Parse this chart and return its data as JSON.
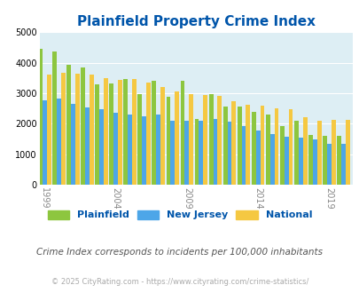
{
  "title": "Plainfield Property Crime Index",
  "years": [
    1999,
    2000,
    2001,
    2002,
    2003,
    2004,
    2005,
    2006,
    2007,
    2008,
    2009,
    2010,
    2011,
    2012,
    2013,
    2014,
    2015,
    2016,
    2017,
    2018,
    2019,
    2020
  ],
  "plainfield": [
    4450,
    4380,
    3920,
    3850,
    3300,
    3310,
    3460,
    2960,
    3400,
    2870,
    3420,
    2160,
    2960,
    2560,
    2570,
    2400,
    2310,
    1910,
    2090,
    1625,
    1605,
    1610
  ],
  "new_jersey": [
    2760,
    2820,
    2640,
    2540,
    2460,
    2360,
    2300,
    2230,
    2290,
    2100,
    2090,
    2100,
    2150,
    2060,
    1930,
    1760,
    1660,
    1560,
    1540,
    1490,
    1330,
    1330
  ],
  "national": [
    3600,
    3680,
    3650,
    3600,
    3500,
    3430,
    3450,
    3340,
    3210,
    3060,
    2980,
    2940,
    2900,
    2730,
    2620,
    2600,
    2490,
    2460,
    2200,
    2100,
    2130,
    2130
  ],
  "plainfield_color": "#8dc63f",
  "nj_color": "#4da6e8",
  "national_color": "#f5c842",
  "bg_color": "#ddeef4",
  "title_color": "#0055aa",
  "subtitle": "Crime Index corresponds to incidents per 100,000 inhabitants",
  "footer": "© 2025 CityRating.com - https://www.cityrating.com/crime-statistics/",
  "ylim": [
    0,
    5000
  ],
  "yticks": [
    0,
    1000,
    2000,
    3000,
    4000,
    5000
  ],
  "xtick_years": [
    1999,
    2004,
    2009,
    2014,
    2019
  ]
}
